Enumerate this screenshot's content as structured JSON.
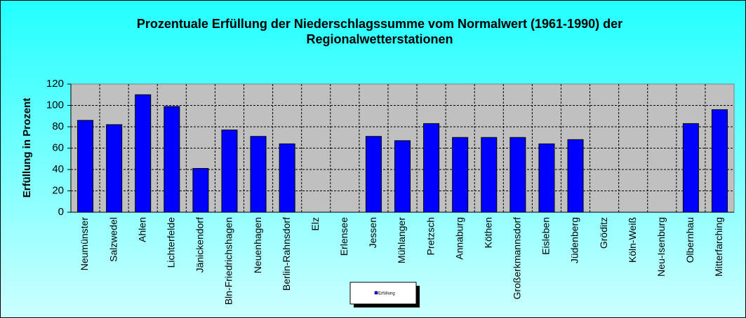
{
  "chart_data": {
    "type": "bar",
    "title": "Prozentuale Erfüllung der Niederschlagssumme vom Normalwert (1961-1990) der Regionalwetterstationen",
    "y_label": "Erfüllung in Prozent",
    "categories": [
      "Neumünster",
      "Salzwedel",
      "Ahlen",
      "Lichterfelde",
      "Jänickendorf",
      "Bln-Friedrichshagen",
      "Neuenhagen",
      "Berlin-Rahnsdorf",
      "Elz",
      "Erlensee",
      "Jessen",
      "Mühlanger",
      "Pretzsch",
      "Annaburg",
      "Köthen",
      "Großerkmannsdorf",
      "Eisleben",
      "Jüdenberg",
      "Gröditz",
      "Köln-Weiß",
      "Neu-Isenburg",
      "Olbernhau",
      "Mitterfarching"
    ],
    "series": [
      {
        "name": "Erfüllung",
        "color": "#0000ff",
        "values": [
          86,
          82,
          110,
          99,
          41,
          77,
          71,
          64,
          null,
          null,
          71,
          67,
          83,
          70,
          70,
          70,
          64,
          68,
          null,
          null,
          null,
          83,
          96
        ]
      }
    ],
    "ylim": [
      0,
      120
    ],
    "yticks": [
      0,
      20,
      40,
      60,
      80,
      100,
      120
    ],
    "grid": true
  }
}
